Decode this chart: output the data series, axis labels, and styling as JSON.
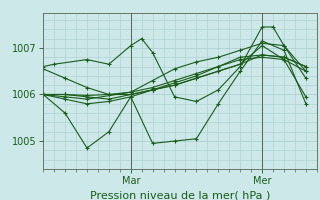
{
  "bg_color": "#cce8e8",
  "line_color": "#1a5c1a",
  "grid_color": "#aacccc",
  "xlabel": "Pression niveau de la mer( hPa )",
  "xlabel_fontsize": 8,
  "tick_fontsize": 7,
  "yticks": [
    1005,
    1006,
    1007
  ],
  "ylim": [
    1004.4,
    1007.75
  ],
  "xlim": [
    0,
    50
  ],
  "xtick_positions": [
    16,
    40
  ],
  "xtick_labels": [
    "Mar",
    "Mer"
  ],
  "series": [
    [
      0,
      1006.55,
      4,
      1006.35,
      8,
      1006.15,
      12,
      1006.0,
      16,
      1006.0,
      20,
      1006.1,
      24,
      1006.2,
      28,
      1006.35,
      32,
      1006.5,
      36,
      1006.65,
      40,
      1006.85,
      44,
      1006.8,
      48,
      1006.6
    ],
    [
      0,
      1006.0,
      4,
      1005.9,
      8,
      1005.8,
      12,
      1005.85,
      16,
      1005.95,
      20,
      1006.1,
      24,
      1006.2,
      28,
      1006.35,
      32,
      1006.5,
      36,
      1006.65,
      40,
      1007.05,
      44,
      1006.75,
      48,
      1005.95
    ],
    [
      0,
      1006.0,
      4,
      1006.0,
      8,
      1005.95,
      12,
      1005.9,
      16,
      1006.0,
      20,
      1006.1,
      24,
      1006.25,
      28,
      1006.4,
      32,
      1006.6,
      36,
      1006.75,
      40,
      1006.8,
      44,
      1006.75,
      48,
      1006.5
    ],
    [
      0,
      1006.0,
      4,
      1006.0,
      8,
      1005.98,
      12,
      1006.0,
      16,
      1006.05,
      20,
      1006.15,
      24,
      1006.3,
      28,
      1006.45,
      32,
      1006.6,
      36,
      1006.8,
      40,
      1006.85,
      44,
      1006.8,
      48,
      1006.6
    ],
    [
      0,
      1006.0,
      4,
      1005.6,
      8,
      1004.85,
      12,
      1005.2,
      16,
      1005.95,
      20,
      1004.95,
      24,
      1005.0,
      28,
      1005.05,
      32,
      1005.8,
      36,
      1006.5,
      40,
      1007.15,
      44,
      1006.95,
      48,
      1005.8
    ],
    [
      0,
      1006.6,
      2,
      1006.65,
      8,
      1006.75,
      12,
      1006.65,
      16,
      1007.05,
      18,
      1007.2,
      20,
      1006.9,
      24,
      1005.95,
      28,
      1005.85,
      32,
      1006.1,
      36,
      1006.6,
      40,
      1007.45,
      42,
      1007.45,
      44,
      1007.05,
      48,
      1006.35
    ],
    [
      0,
      1006.0,
      4,
      1005.95,
      8,
      1005.9,
      16,
      1006.05,
      20,
      1006.3,
      24,
      1006.55,
      28,
      1006.7,
      32,
      1006.8,
      36,
      1006.95,
      40,
      1007.1,
      44,
      1007.05,
      48,
      1006.5
    ]
  ]
}
